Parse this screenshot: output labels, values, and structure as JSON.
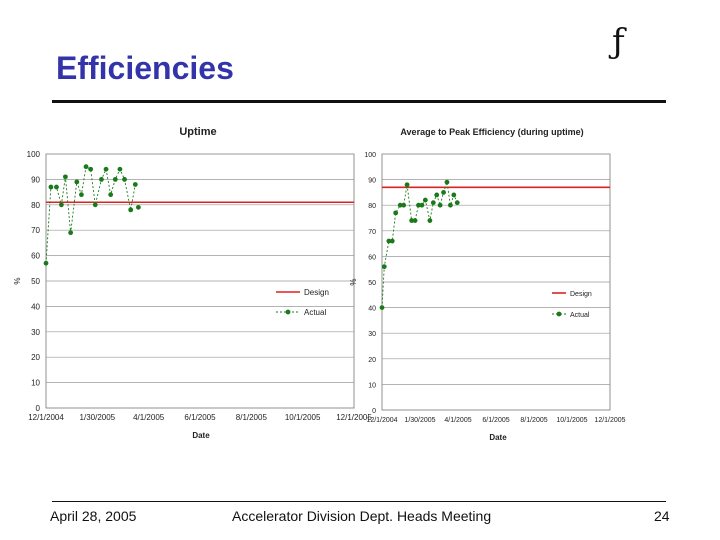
{
  "slide": {
    "title": "Efficiencies",
    "logo_glyph": "ƒ",
    "footer": {
      "date": "April 28, 2005",
      "meeting": "Accelerator Division Dept. Heads Meeting",
      "page": "24"
    }
  },
  "chart_data": [
    {
      "type": "line",
      "title": "Uptime",
      "xlabel": "Date",
      "ylabel": "%",
      "x_tick_labels": [
        "12/1/2004",
        "1/30/2005",
        "4/1/2005",
        "6/1/2005",
        "8/1/2005",
        "10/1/2005",
        "12/1/2005"
      ],
      "x_tick_fractions": [
        0,
        0.1667,
        0.3333,
        0.5,
        0.6667,
        0.8333,
        1.0
      ],
      "ylim": [
        0,
        100
      ],
      "y_ticks": [
        0,
        10,
        20,
        30,
        40,
        50,
        60,
        70,
        80,
        90,
        100
      ],
      "grid": true,
      "legend": "right",
      "series": [
        {
          "name": "Design",
          "color": "#dd2222",
          "style": "solid",
          "values_x": [
            0,
            1
          ],
          "values_y": [
            81,
            81
          ]
        },
        {
          "name": "Actual",
          "color": "#1a7a1a",
          "style": "dashed-markers",
          "values_x": [
            0.0,
            0.016,
            0.034,
            0.05,
            0.063,
            0.08,
            0.1,
            0.115,
            0.13,
            0.145,
            0.16,
            0.18,
            0.195,
            0.21,
            0.225,
            0.24,
            0.255,
            0.275,
            0.29
          ],
          "values_y": [
            57,
            87,
            87,
            80,
            91,
            69,
            89,
            84,
            95,
            94,
            80,
            90,
            94,
            84,
            90,
            94,
            90,
            78,
            88
          ]
        },
        {
          "name": "",
          "color": "#1a7a1a",
          "style": "markers-only",
          "values_x": [
            0.3
          ],
          "values_y": [
            79
          ]
        }
      ]
    },
    {
      "type": "line",
      "title": "Average to Peak Efficiency (during uptime)",
      "xlabel": "Date",
      "ylabel": "%",
      "x_tick_labels": [
        "12/1/2004",
        "1/30/2005",
        "4/1/2005",
        "6/1/2005",
        "8/1/2005",
        "10/1/2005",
        "12/1/2005"
      ],
      "x_tick_fractions": [
        0,
        0.1667,
        0.3333,
        0.5,
        0.6667,
        0.8333,
        1.0
      ],
      "ylim": [
        0,
        100
      ],
      "y_ticks": [
        0,
        10,
        20,
        30,
        40,
        50,
        60,
        70,
        80,
        90,
        100
      ],
      "grid": true,
      "legend": "right",
      "series": [
        {
          "name": "Design",
          "color": "#dd2222",
          "style": "solid",
          "values_x": [
            0,
            1
          ],
          "values_y": [
            87,
            87
          ]
        },
        {
          "name": "Actual",
          "color": "#1a7a1a",
          "style": "dashed-markers",
          "values_x": [
            0.0,
            0.01,
            0.03,
            0.045,
            0.06,
            0.08,
            0.095,
            0.11,
            0.13,
            0.145,
            0.16,
            0.175,
            0.19,
            0.21,
            0.225,
            0.24,
            0.255,
            0.27,
            0.285,
            0.3,
            0.315,
            0.33
          ],
          "values_y": [
            40,
            56,
            66,
            66,
            77,
            80,
            80,
            88,
            74,
            74,
            80,
            80,
            82,
            74,
            81,
            84,
            80,
            85,
            89,
            80,
            84,
            81
          ]
        }
      ]
    }
  ]
}
